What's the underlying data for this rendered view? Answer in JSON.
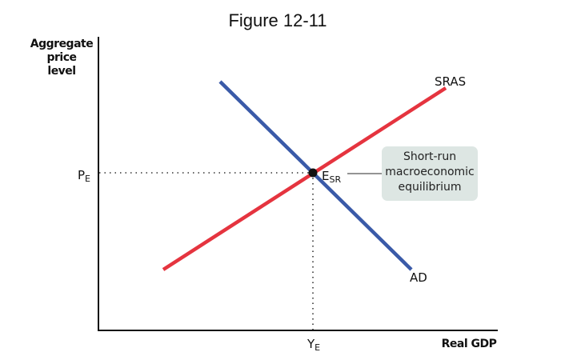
{
  "title": "Figure 12-11",
  "axes": {
    "y_label_lines": [
      "Aggregate",
      "price",
      "level"
    ],
    "x_label": "Real GDP"
  },
  "curves": {
    "sras": {
      "label": "SRAS",
      "color": "#e5343f"
    },
    "ad": {
      "label": "AD",
      "color": "#3a5aa8"
    }
  },
  "equilibrium": {
    "label_main": "E",
    "label_sub": "SR",
    "price_main": "P",
    "price_sub": "E",
    "output_main": "Y",
    "output_sub": "E"
  },
  "callout": {
    "lines": [
      "Short-run",
      "macroeconomic",
      "equilibrium"
    ],
    "fill": "#dde6e3"
  }
}
